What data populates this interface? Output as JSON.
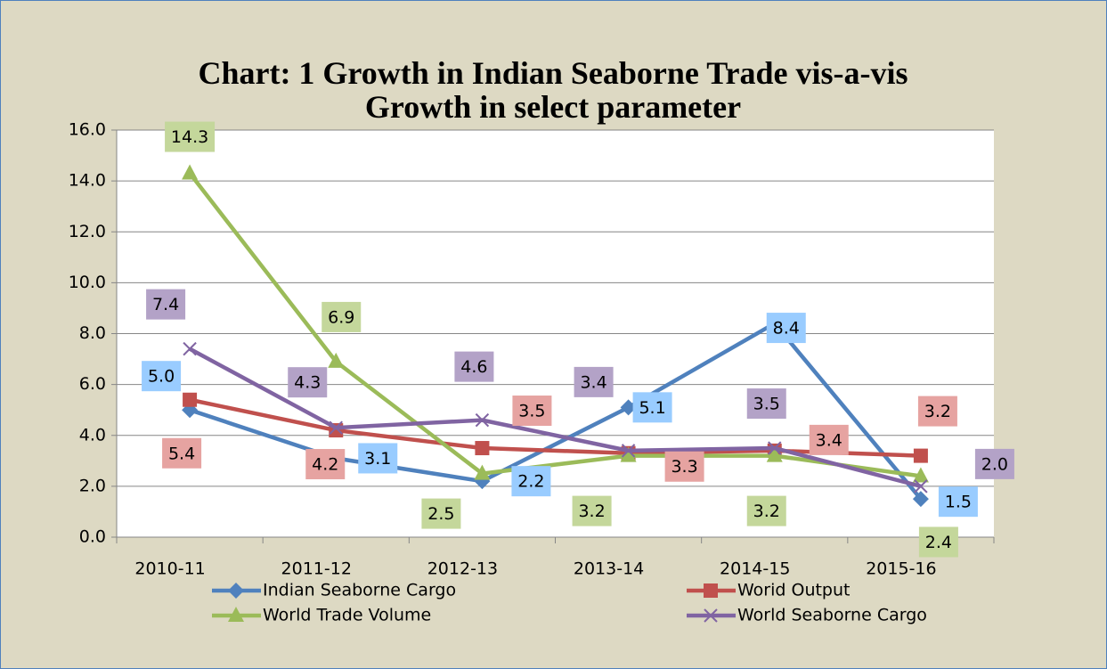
{
  "chart_data": {
    "type": "line",
    "title": "Chart: 1 Growth in Indian Seaborne Trade vis-a-vis Growth in select parameter",
    "categories": [
      "2010-11",
      "2011-12",
      "2012-13",
      "2013-14",
      "2014-15",
      "2015-16"
    ],
    "series": [
      {
        "name": "Indian Seaborne Cargo",
        "color": "#4f81bd",
        "label_color": "#99ccff",
        "marker": "diamond",
        "values": [
          5.0,
          3.1,
          2.2,
          5.1,
          8.4,
          1.5
        ],
        "value_labels": [
          "5.0",
          "3.1",
          "2.2",
          "5.1",
          "8.4",
          "1.5"
        ]
      },
      {
        "name": "Worid Output",
        "color": "#c0504d",
        "label_color": "#e6a3a1",
        "marker": "square",
        "values": [
          5.4,
          4.2,
          3.5,
          3.3,
          3.4,
          3.2
        ],
        "value_labels": [
          "5.4",
          "4.2",
          "3.5",
          "3.3",
          "3.4",
          "3.2"
        ]
      },
      {
        "name": "World Trade Volume",
        "color": "#9bbb59",
        "label_color": "#c4d79b",
        "marker": "triangle",
        "values": [
          14.3,
          6.9,
          2.5,
          3.2,
          3.2,
          2.4
        ],
        "value_labels": [
          "14.3",
          "6.9",
          "2.5",
          "3.2",
          "3.2",
          "2.4"
        ]
      },
      {
        "name": "World Seaborne Cargo",
        "color": "#8064a2",
        "label_color": "#b3a2c7",
        "marker": "x",
        "values": [
          7.4,
          4.3,
          4.6,
          3.4,
          3.5,
          2.0
        ],
        "value_labels": [
          "7.4",
          "4.3",
          "4.6",
          "3.4",
          "3.5",
          "2.0"
        ]
      }
    ],
    "ylim": [
      0,
      16
    ],
    "yticks": [
      {
        "value": 0,
        "label": "0.0"
      },
      {
        "value": 2,
        "label": "2.0"
      },
      {
        "value": 4,
        "label": "4.0"
      },
      {
        "value": 6,
        "label": "6.0"
      },
      {
        "value": 8,
        "label": "8.0"
      },
      {
        "value": 10,
        "label": "10.0"
      },
      {
        "value": 12,
        "label": "12.0"
      },
      {
        "value": 14,
        "label": "14.0"
      },
      {
        "value": 16,
        "label": "16.0"
      }
    ],
    "grid": true,
    "legend": "bottom"
  }
}
